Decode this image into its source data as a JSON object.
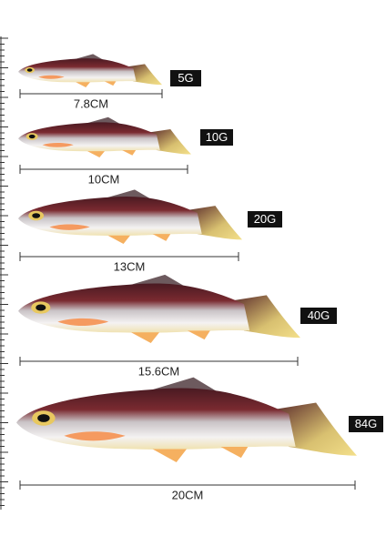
{
  "items": [
    {
      "weight": "5G",
      "length": "7.8CM"
    },
    {
      "weight": "10G",
      "length": "10CM"
    },
    {
      "weight": "20G",
      "length": "13CM"
    },
    {
      "weight": "40G",
      "length": "15.6CM"
    },
    {
      "weight": "84G",
      "length": "20CM"
    }
  ]
}
